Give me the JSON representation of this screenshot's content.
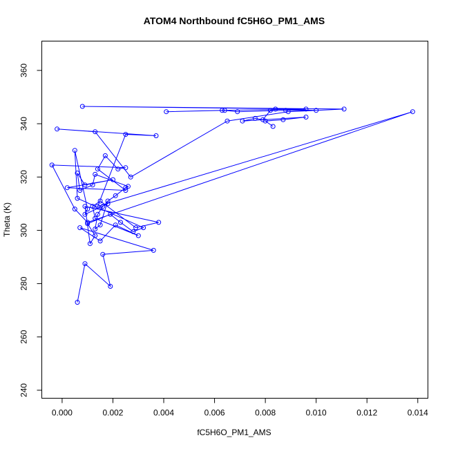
{
  "chart_data": {
    "type": "line",
    "title": "ATOM4 Northbound fC5H6O_PM1_AMS",
    "xlabel": "fC5H6O_PM1_AMS",
    "ylabel": "Theta (K)",
    "xlim": [
      -0.0008,
      0.0144
    ],
    "ylim": [
      237,
      371
    ],
    "xticks": [
      0.0,
      0.002,
      0.004,
      0.006,
      0.008,
      0.01,
      0.012,
      0.014
    ],
    "xtick_labels": [
      "0.000",
      "0.002",
      "0.004",
      "0.006",
      "0.008",
      "0.010",
      "0.012",
      "0.014"
    ],
    "yticks": [
      240,
      260,
      280,
      300,
      320,
      340,
      360
    ],
    "ytick_labels": [
      "240",
      "260",
      "280",
      "300",
      "320",
      "340",
      "360"
    ],
    "grid": false,
    "color": "#0000ff",
    "x": [
      0.0006,
      0.0009,
      0.0019,
      0.0016,
      0.0036,
      0.0007,
      0.0015,
      0.0021,
      0.003,
      0.0013,
      0.0012,
      0.0015,
      0.0029,
      0.0038,
      0.0009,
      0.0011,
      0.0013,
      0.001,
      0.0019,
      0.0023,
      0.0028,
      0.0032,
      0.0006,
      0.0005,
      0.001,
      0.0009,
      0.0018,
      0.0016,
      0.0014,
      0.0013,
      0.0015,
      0.0018,
      0.0021,
      0.0025,
      0.0026,
      0.0013,
      0.0012,
      0.0007,
      0.0006,
      0.0009,
      0.002,
      0.0002,
      0.0025,
      0.0014,
      0.0017,
      0.0022,
      0.0025,
      -0.0004,
      0.0005,
      0.001,
      0.0138,
      0.0014,
      0.0025,
      0.0037,
      -0.0002,
      0.0013,
      0.0027,
      0.0065,
      0.0089,
      0.0111,
      0.0008,
      0.0096,
      0.0063,
      0.0041,
      0.0064,
      0.0069,
      0.0088,
      0.01,
      0.0084,
      0.0082,
      0.0079,
      0.0076,
      0.0071,
      0.0096,
      0.0087,
      0.008,
      0.0083
    ],
    "y": [
      273,
      287.5,
      279,
      291,
      292.5,
      301,
      296,
      302,
      298,
      304.5,
      309,
      311,
      301,
      303,
      309,
      295,
      298,
      302.5,
      306,
      303,
      299.5,
      301,
      312,
      330,
      308,
      306,
      310,
      309,
      306,
      300.5,
      302,
      311,
      313,
      316,
      316.5,
      321,
      317,
      315,
      321.5,
      317,
      319,
      316,
      315,
      323,
      328,
      323,
      323.5,
      324.5,
      308,
      303,
      344.5,
      309,
      336,
      335.5,
      338,
      337,
      320,
      341,
      344.5,
      345.5,
      346.5,
      345.5,
      345,
      344.5,
      345,
      344.5,
      345,
      345,
      345.5,
      345,
      341.5,
      342,
      341,
      342.5,
      341.5,
      341,
      339
    ]
  }
}
